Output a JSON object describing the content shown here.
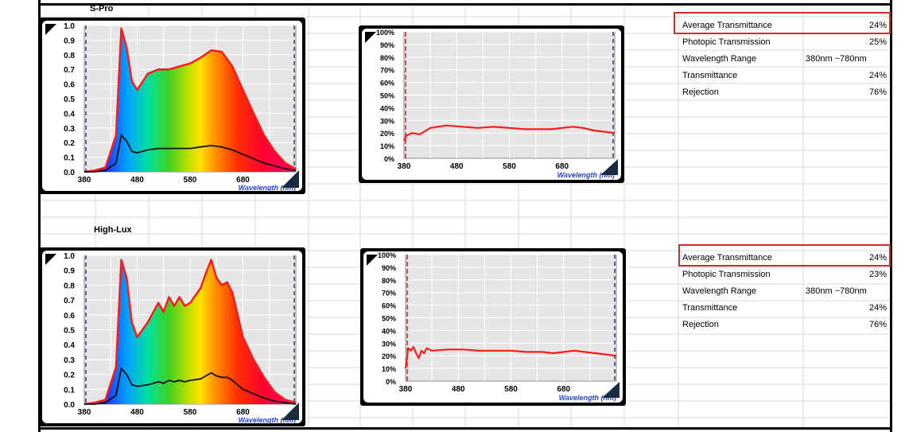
{
  "sections": [
    {
      "caption": "S-Pro",
      "spectrum": {
        "y_ticks": [
          "1.0",
          "0.9",
          "0.8",
          "0.7",
          "0.6",
          "0.5",
          "0.4",
          "0.3",
          "0.2",
          "0.1",
          "0.0"
        ],
        "x_ticks": [
          "380",
          "480",
          "580",
          "680"
        ],
        "xlabel": "Wavelength (nm)"
      },
      "transmission": {
        "y_ticks": [
          "100%",
          "90%",
          "80%",
          "70%",
          "60%",
          "50%",
          "40%",
          "30%",
          "20%",
          "10%",
          "0%"
        ],
        "x_ticks": [
          "380",
          "480",
          "580",
          "680"
        ],
        "xlabel": "Wavelength (nm)"
      },
      "table": [
        {
          "label": "Average Transmittance",
          "value": "24%",
          "highlight": true
        },
        {
          "label": "Photopic Transmission",
          "value": "25%"
        },
        {
          "label": "Wavelength Range",
          "value": "380nm ~780nm"
        },
        {
          "label": "Transmittance",
          "value": "24%"
        },
        {
          "label": "Rejection",
          "value": "76%"
        }
      ]
    },
    {
      "caption": "High-Lux",
      "spectrum": {
        "y_ticks": [
          "1.0",
          "0.9",
          "0.8",
          "0.7",
          "0.6",
          "0.5",
          "0.4",
          "0.3",
          "0.2",
          "0.1",
          "0.0"
        ],
        "x_ticks": [
          "380",
          "480",
          "580",
          "680"
        ],
        "xlabel": "Wavelength (nm)"
      },
      "transmission": {
        "y_ticks": [
          "100%",
          "90%",
          "80%",
          "70%",
          "60%",
          "50%",
          "40%",
          "30%",
          "20%",
          "10%",
          "0%"
        ],
        "x_ticks": [
          "380",
          "480",
          "580",
          "680"
        ],
        "xlabel": "Wavelength (nm)"
      },
      "table": [
        {
          "label": "Average Transmittance",
          "value": "24%",
          "highlight": true
        },
        {
          "label": "Photopic Transmission",
          "value": "23%"
        },
        {
          "label": "Wavelength Range",
          "value": "380nm ~780nm"
        },
        {
          "label": "Transmittance",
          "value": "24%"
        },
        {
          "label": "Rejection",
          "value": "76%"
        }
      ]
    }
  ],
  "colors": {
    "highlight_border": "#d32b2b",
    "grid_line": "#d9d9d9",
    "plot_bg": "#e6e6e6",
    "curve_red": "#ff1a1a"
  },
  "chart_data": [
    {
      "type": "area",
      "x": [
        380,
        400,
        420,
        440,
        450,
        460,
        470,
        480,
        500,
        520,
        540,
        560,
        580,
        600,
        620,
        640,
        660,
        680,
        700,
        720,
        740,
        760,
        780
      ],
      "series": [
        {
          "values": [
            0.0,
            0.01,
            0.03,
            0.25,
            0.98,
            0.85,
            0.62,
            0.56,
            0.67,
            0.7,
            0.7,
            0.72,
            0.74,
            0.78,
            0.83,
            0.82,
            0.72,
            0.56,
            0.4,
            0.25,
            0.14,
            0.06,
            0.02
          ]
        },
        {
          "values": [
            0.0,
            0.0,
            0.01,
            0.06,
            0.25,
            0.21,
            0.14,
            0.13,
            0.15,
            0.16,
            0.16,
            0.16,
            0.16,
            0.17,
            0.18,
            0.17,
            0.15,
            0.12,
            0.09,
            0.06,
            0.04,
            0.02,
            0.01
          ]
        }
      ],
      "xlim": [
        380,
        780
      ],
      "ylim": [
        0,
        1.0
      ],
      "grid": true
    },
    {
      "type": "line",
      "x": [
        380,
        385,
        395,
        410,
        430,
        460,
        490,
        520,
        550,
        580,
        610,
        640,
        660,
        680,
        700,
        720,
        740,
        760,
        780
      ],
      "series": [
        {
          "values": [
            14,
            18,
            20,
            19,
            24,
            26,
            25,
            24,
            25,
            24,
            23,
            23,
            23,
            24,
            25,
            24,
            22,
            21,
            20
          ]
        }
      ],
      "xlim": [
        380,
        780
      ],
      "ylim": [
        0,
        100
      ],
      "grid": true
    },
    {
      "type": "area",
      "x": [
        380,
        400,
        420,
        440,
        450,
        460,
        470,
        480,
        500,
        520,
        530,
        540,
        550,
        560,
        570,
        580,
        600,
        610,
        620,
        630,
        640,
        650,
        660,
        680,
        700,
        720,
        740,
        760,
        780
      ],
      "series": [
        {
          "values": [
            0.0,
            0.01,
            0.03,
            0.25,
            0.97,
            0.85,
            0.55,
            0.45,
            0.55,
            0.68,
            0.62,
            0.72,
            0.66,
            0.72,
            0.66,
            0.68,
            0.78,
            0.88,
            0.97,
            0.85,
            0.8,
            0.82,
            0.75,
            0.45,
            0.3,
            0.18,
            0.08,
            0.03,
            0.01
          ]
        },
        {
          "values": [
            0.0,
            0.0,
            0.01,
            0.06,
            0.24,
            0.2,
            0.13,
            0.12,
            0.13,
            0.15,
            0.14,
            0.16,
            0.15,
            0.16,
            0.15,
            0.16,
            0.17,
            0.19,
            0.21,
            0.19,
            0.18,
            0.18,
            0.16,
            0.1,
            0.07,
            0.04,
            0.02,
            0.01,
            0.0
          ]
        }
      ],
      "xlim": [
        380,
        780
      ],
      "ylim": [
        0,
        1.0
      ],
      "grid": true
    },
    {
      "type": "line",
      "x": [
        380,
        385,
        390,
        395,
        400,
        405,
        410,
        415,
        420,
        430,
        460,
        490,
        520,
        550,
        580,
        610,
        640,
        660,
        680,
        700,
        720,
        740,
        760,
        780
      ],
      "series": [
        {
          "values": [
            10,
            26,
            24,
            27,
            22,
            18,
            24,
            22,
            26,
            24,
            25,
            25,
            24,
            24,
            24,
            23,
            23,
            22,
            23,
            24,
            23,
            22,
            21,
            20
          ]
        }
      ],
      "xlim": [
        380,
        780
      ],
      "ylim": [
        0,
        100
      ],
      "grid": true
    }
  ]
}
